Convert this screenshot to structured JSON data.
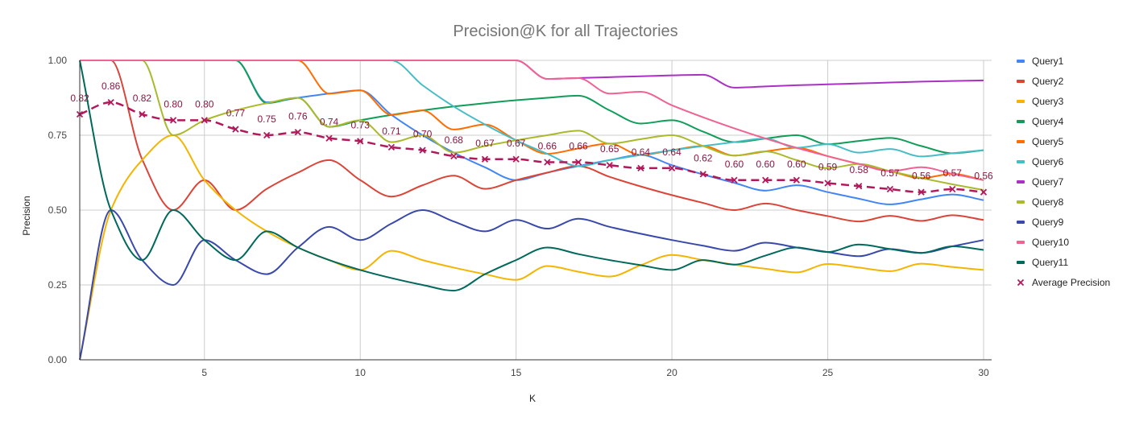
{
  "chart_data": {
    "type": "line",
    "title": "Precision@K for all Trajectories",
    "xlabel": "K",
    "ylabel": "Precision",
    "xlim": [
      1,
      30
    ],
    "ylim": [
      0,
      1
    ],
    "x_ticks": [
      "5",
      "10",
      "15",
      "20",
      "25",
      "30"
    ],
    "y_ticks": [
      "0.00",
      "0.25",
      "0.50",
      "0.75",
      "1.00"
    ],
    "grid": true,
    "legend_position": "right",
    "x": [
      1,
      2,
      3,
      4,
      5,
      6,
      7,
      8,
      9,
      10,
      11,
      12,
      13,
      14,
      15,
      16,
      17,
      18,
      19,
      20,
      21,
      22,
      23,
      24,
      25,
      26,
      27,
      28,
      29,
      30
    ],
    "series": [
      {
        "name": "Query1",
        "color": "#4285f4",
        "values": [
          1,
          1,
          1,
          1,
          1,
          1,
          0.86,
          0.875,
          0.889,
          0.9,
          0.818,
          0.75,
          0.692,
          0.643,
          0.6,
          0.625,
          0.647,
          0.667,
          0.684,
          0.65,
          0.619,
          0.591,
          0.565,
          0.583,
          0.56,
          0.538,
          0.519,
          0.536,
          0.552,
          0.533
        ]
      },
      {
        "name": "Query2",
        "color": "#db4437",
        "values": [
          1,
          1,
          0.67,
          0.5,
          0.6,
          0.5,
          0.571,
          0.625,
          0.667,
          0.6,
          0.545,
          0.583,
          0.615,
          0.571,
          0.6,
          0.625,
          0.647,
          0.611,
          0.579,
          0.55,
          0.524,
          0.5,
          0.522,
          0.5,
          0.48,
          0.462,
          0.481,
          0.464,
          0.483,
          0.467
        ]
      },
      {
        "name": "Query3",
        "color": "#f4b400",
        "values": [
          0,
          0.5,
          0.667,
          0.75,
          0.6,
          0.5,
          0.429,
          0.375,
          0.333,
          0.3,
          0.364,
          0.333,
          0.308,
          0.286,
          0.267,
          0.313,
          0.294,
          0.278,
          0.316,
          0.35,
          0.333,
          0.318,
          0.304,
          0.292,
          0.32,
          0.308,
          0.296,
          0.321,
          0.31,
          0.3
        ]
      },
      {
        "name": "Query4",
        "color": "#0f9d58",
        "values": [
          1,
          1,
          1,
          1,
          1,
          1,
          0.857,
          0.875,
          0.778,
          0.8,
          0.818,
          0.833,
          0.846,
          0.857,
          0.867,
          0.875,
          0.882,
          0.833,
          0.789,
          0.8,
          0.762,
          0.727,
          0.739,
          0.75,
          0.72,
          0.731,
          0.741,
          0.714,
          0.69,
          0.7
        ]
      },
      {
        "name": "Query5",
        "color": "#ff6d00",
        "values": [
          1,
          1,
          1,
          1,
          1,
          1,
          1,
          1,
          0.889,
          0.9,
          0.818,
          0.833,
          0.769,
          0.786,
          0.733,
          0.688,
          0.706,
          0.722,
          0.684,
          0.7,
          0.714,
          0.682,
          0.696,
          0.708,
          0.68,
          0.654,
          0.63,
          0.607,
          0.621,
          0.6
        ]
      },
      {
        "name": "Query6",
        "color": "#46bdc6",
        "values": [
          1,
          1,
          1,
          1,
          1,
          1,
          1,
          1,
          1,
          1,
          1,
          0.917,
          0.846,
          0.786,
          0.733,
          0.688,
          0.647,
          0.667,
          0.684,
          0.7,
          0.714,
          0.727,
          0.739,
          0.708,
          0.72,
          0.692,
          0.704,
          0.679,
          0.69,
          0.7
        ]
      },
      {
        "name": "Query7",
        "color": "#ab30c4",
        "values": [
          1,
          1,
          1,
          1,
          1,
          1,
          1,
          1,
          1,
          1,
          1,
          1,
          1,
          1,
          1,
          0.938,
          0.941,
          0.944,
          0.947,
          0.95,
          0.952,
          0.909,
          0.913,
          0.917,
          0.92,
          0.923,
          0.926,
          0.929,
          0.931,
          0.933
        ]
      },
      {
        "name": "Query8",
        "color": "#abb92c",
        "values": [
          1,
          1,
          1,
          0.75,
          0.8,
          0.833,
          0.857,
          0.875,
          0.778,
          0.8,
          0.727,
          0.75,
          0.692,
          0.714,
          0.733,
          0.75,
          0.765,
          0.722,
          0.737,
          0.75,
          0.714,
          0.682,
          0.696,
          0.667,
          0.64,
          0.654,
          0.63,
          0.607,
          0.586,
          0.567
        ]
      },
      {
        "name": "Query9",
        "color": "#3949ab",
        "values": [
          0,
          0.5,
          0.333,
          0.25,
          0.4,
          0.333,
          0.286,
          0.375,
          0.444,
          0.4,
          0.455,
          0.5,
          0.462,
          0.429,
          0.467,
          0.438,
          0.471,
          0.444,
          0.421,
          0.4,
          0.381,
          0.364,
          0.391,
          0.375,
          0.36,
          0.346,
          0.37,
          0.357,
          0.379,
          0.4
        ]
      },
      {
        "name": "Query10",
        "color": "#f06292",
        "values": [
          1,
          1,
          1,
          1,
          1,
          1,
          1,
          1,
          1,
          1,
          1,
          1,
          1,
          1,
          1,
          0.938,
          0.941,
          0.889,
          0.895,
          0.85,
          0.81,
          0.773,
          0.739,
          0.708,
          0.68,
          0.654,
          0.63,
          0.643,
          0.621,
          0.6
        ]
      },
      {
        "name": "Query11",
        "color": "#00695c",
        "values": [
          1,
          0.5,
          0.333,
          0.5,
          0.4,
          0.333,
          0.429,
          0.375,
          0.333,
          0.3,
          0.273,
          0.25,
          0.231,
          0.286,
          0.333,
          0.375,
          0.353,
          0.333,
          0.316,
          0.3,
          0.333,
          0.318,
          0.348,
          0.375,
          0.36,
          0.385,
          0.37,
          0.357,
          0.379,
          0.367
        ]
      }
    ],
    "average": {
      "name": "Average Precision",
      "color": "#b2195b",
      "values": [
        0.82,
        0.86,
        0.82,
        0.8,
        0.8,
        0.77,
        0.75,
        0.76,
        0.74,
        0.73,
        0.71,
        0.7,
        0.68,
        0.67,
        0.67,
        0.66,
        0.66,
        0.65,
        0.64,
        0.64,
        0.62,
        0.6,
        0.6,
        0.6,
        0.59,
        0.58,
        0.57,
        0.56,
        0.57,
        0.56
      ],
      "labels": [
        "0.82",
        "0.86",
        "0.82",
        "0.80",
        "0.80",
        "0.77",
        "0.75",
        "0.76",
        "0.74",
        "0.73",
        "0.71",
        "0.70",
        "0.68",
        "0.67",
        "0.67",
        "0.66",
        "0.66",
        "0.65",
        "0.64",
        "0.64",
        "0.62",
        "0.60",
        "0.60",
        "0.60",
        "0.59",
        "0.58",
        "0.57",
        "0.56",
        "0.57",
        "0.56"
      ]
    }
  }
}
